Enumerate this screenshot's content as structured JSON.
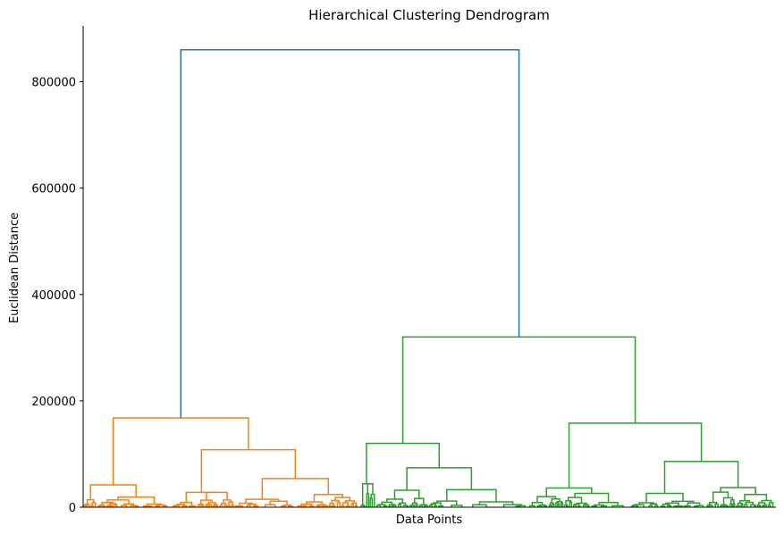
{
  "chart_data": {
    "type": "dendrogram",
    "title": "Hierarchical Clustering Dendrogram",
    "xlabel": "Data Points",
    "ylabel": "Euclidean Distance",
    "ylim": [
      0,
      905000
    ],
    "yticks": [
      0,
      200000,
      400000,
      600000,
      800000
    ],
    "ytick_labels": [
      "0",
      "200000",
      "400000",
      "600000",
      "800000"
    ],
    "grid": false,
    "colors": {
      "root": "#1f77b4",
      "cluster_1": "#ff7f0e",
      "cluster_2": "#2ca02c"
    },
    "main_merges": [
      {
        "name": "root",
        "height": 860000,
        "color": "root"
      },
      {
        "name": "cluster-1-top",
        "height": 168000,
        "color": "cluster_1"
      },
      {
        "name": "cluster-2-top",
        "height": 320000,
        "color": "cluster_2"
      },
      {
        "name": "cluster-1-right",
        "height": 108000,
        "color": "cluster_1"
      },
      {
        "name": "cluster-1-left",
        "height": 42000,
        "color": "cluster_1"
      },
      {
        "name": "cluster-2-left",
        "height": 120000,
        "color": "cluster_2"
      },
      {
        "name": "cluster-2-right",
        "height": 158000,
        "color": "cluster_2"
      },
      {
        "name": "cluster-2-left-right",
        "height": 74000,
        "color": "cluster_2"
      },
      {
        "name": "cluster-2-right-right",
        "height": 86000,
        "color": "cluster_2"
      },
      {
        "name": "cluster-1-right-right",
        "height": 54000,
        "color": "cluster_1"
      },
      {
        "name": "cluster-2-right-left",
        "height": 36000,
        "color": "cluster_2"
      }
    ]
  }
}
